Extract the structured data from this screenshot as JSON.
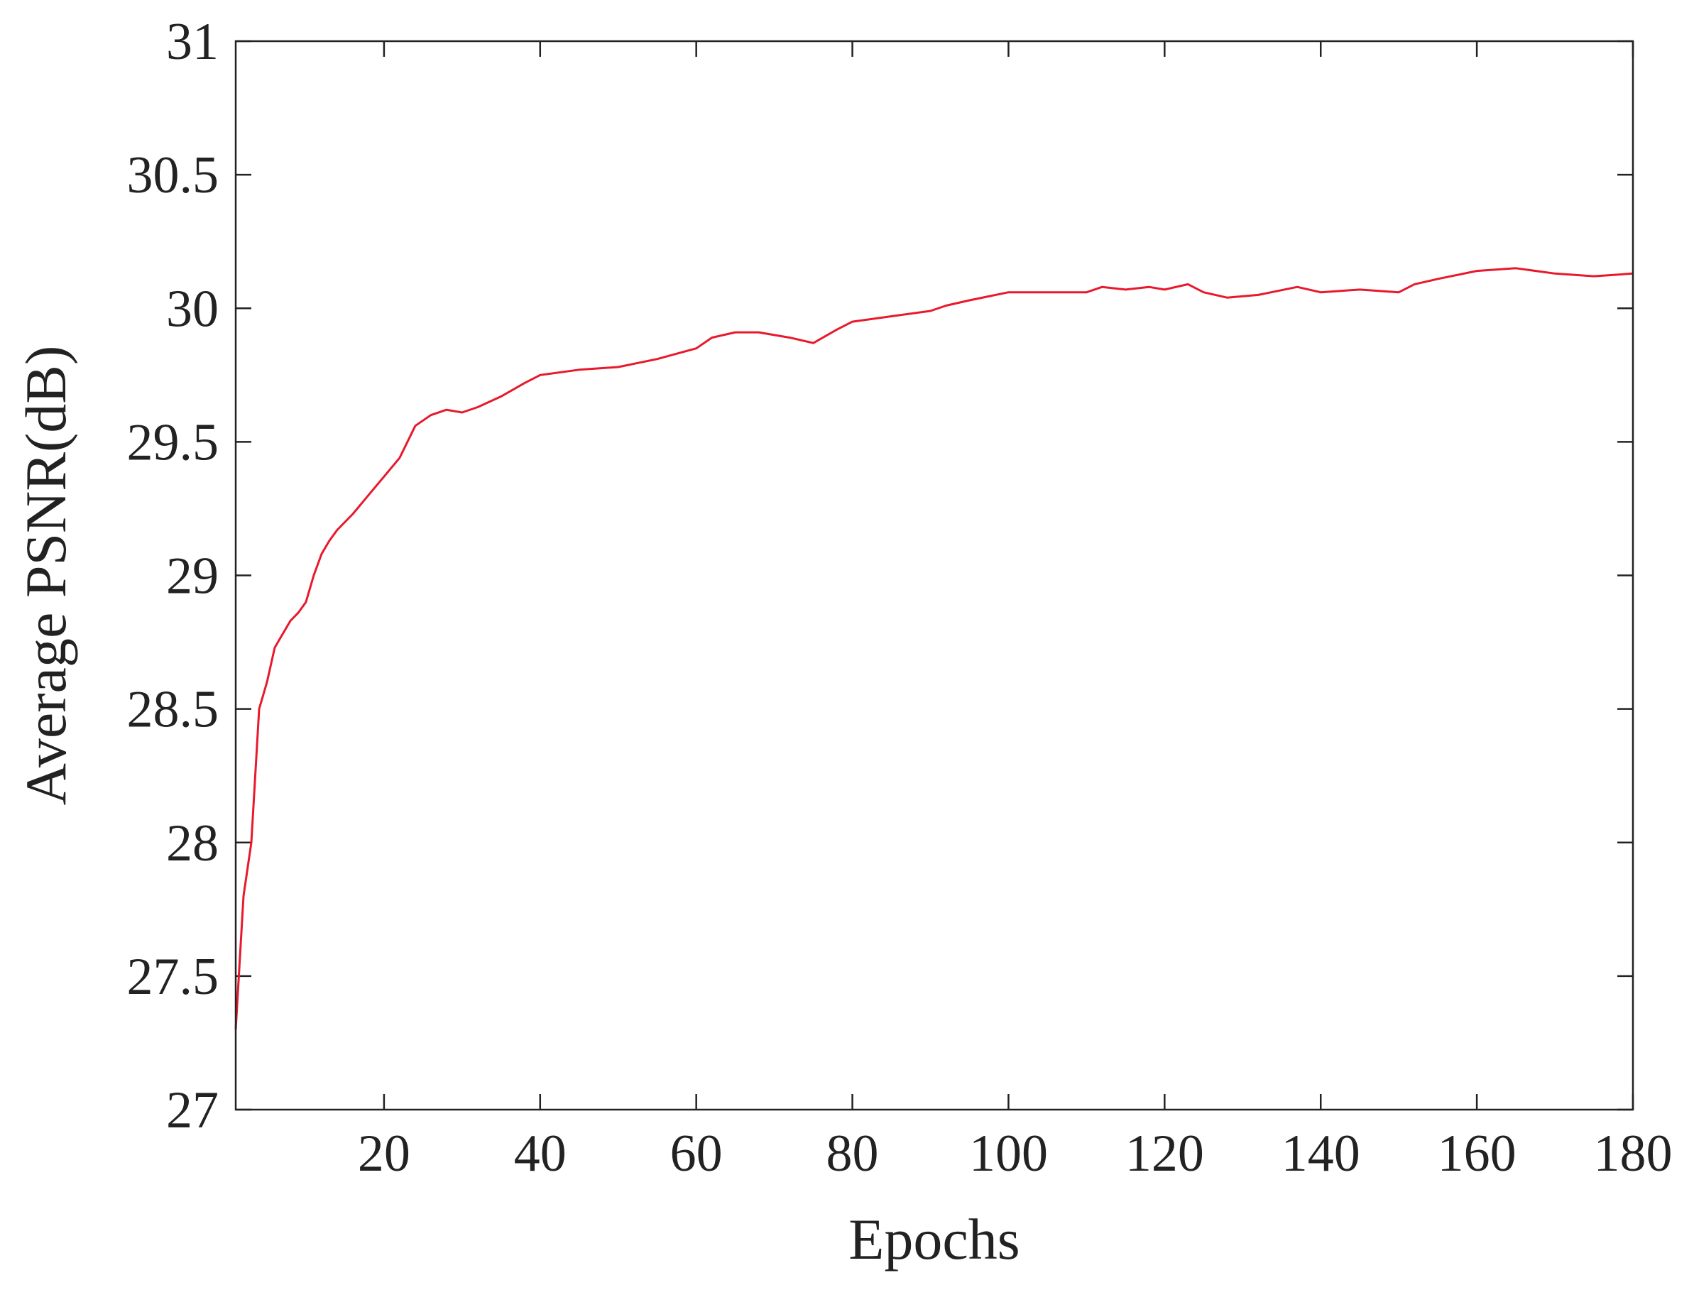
{
  "chart_data": {
    "type": "line",
    "title": "",
    "xlabel": "Epochs",
    "ylabel": "Average PSNR(dB)",
    "xlim": [
      1,
      180
    ],
    "ylim": [
      27,
      31
    ],
    "xticks": [
      20,
      40,
      60,
      80,
      100,
      120,
      140,
      160,
      180
    ],
    "yticks": [
      27,
      27.5,
      28,
      28.5,
      29,
      29.5,
      30,
      30.5,
      31
    ],
    "xtick_labels": [
      "20",
      "40",
      "60",
      "80",
      "100",
      "120",
      "140",
      "160",
      "180"
    ],
    "ytick_labels": [
      "27",
      "27.5",
      "28",
      "28.5",
      "29",
      "29.5",
      "30",
      "30.5",
      "31"
    ],
    "grid": false,
    "legend": "none",
    "series": [
      {
        "color": "#e8192c",
        "x": [
          1,
          2,
          3,
          4,
          5,
          6,
          7,
          8,
          9,
          10,
          11,
          12,
          13,
          14,
          16,
          18,
          20,
          22,
          24,
          26,
          28,
          30,
          32,
          35,
          38,
          40,
          45,
          50,
          55,
          60,
          62,
          65,
          68,
          72,
          75,
          78,
          80,
          85,
          90,
          92,
          95,
          100,
          105,
          110,
          112,
          115,
          118,
          120,
          123,
          125,
          128,
          132,
          137,
          140,
          145,
          150,
          152,
          155,
          160,
          165,
          170,
          175,
          180
        ],
        "values": [
          27.3,
          27.8,
          28.0,
          28.5,
          28.6,
          28.73,
          28.78,
          28.83,
          28.86,
          28.9,
          29.0,
          29.08,
          29.13,
          29.17,
          29.23,
          29.3,
          29.37,
          29.44,
          29.56,
          29.6,
          29.62,
          29.61,
          29.63,
          29.67,
          29.72,
          29.75,
          29.77,
          29.78,
          29.81,
          29.85,
          29.89,
          29.91,
          29.91,
          29.89,
          29.87,
          29.92,
          29.95,
          29.97,
          29.99,
          30.01,
          30.03,
          30.06,
          30.06,
          30.06,
          30.08,
          30.07,
          30.08,
          30.07,
          30.09,
          30.06,
          30.04,
          30.05,
          30.08,
          30.06,
          30.07,
          30.06,
          30.09,
          30.11,
          30.14,
          30.15,
          30.13,
          30.12,
          30.13
        ]
      }
    ]
  }
}
